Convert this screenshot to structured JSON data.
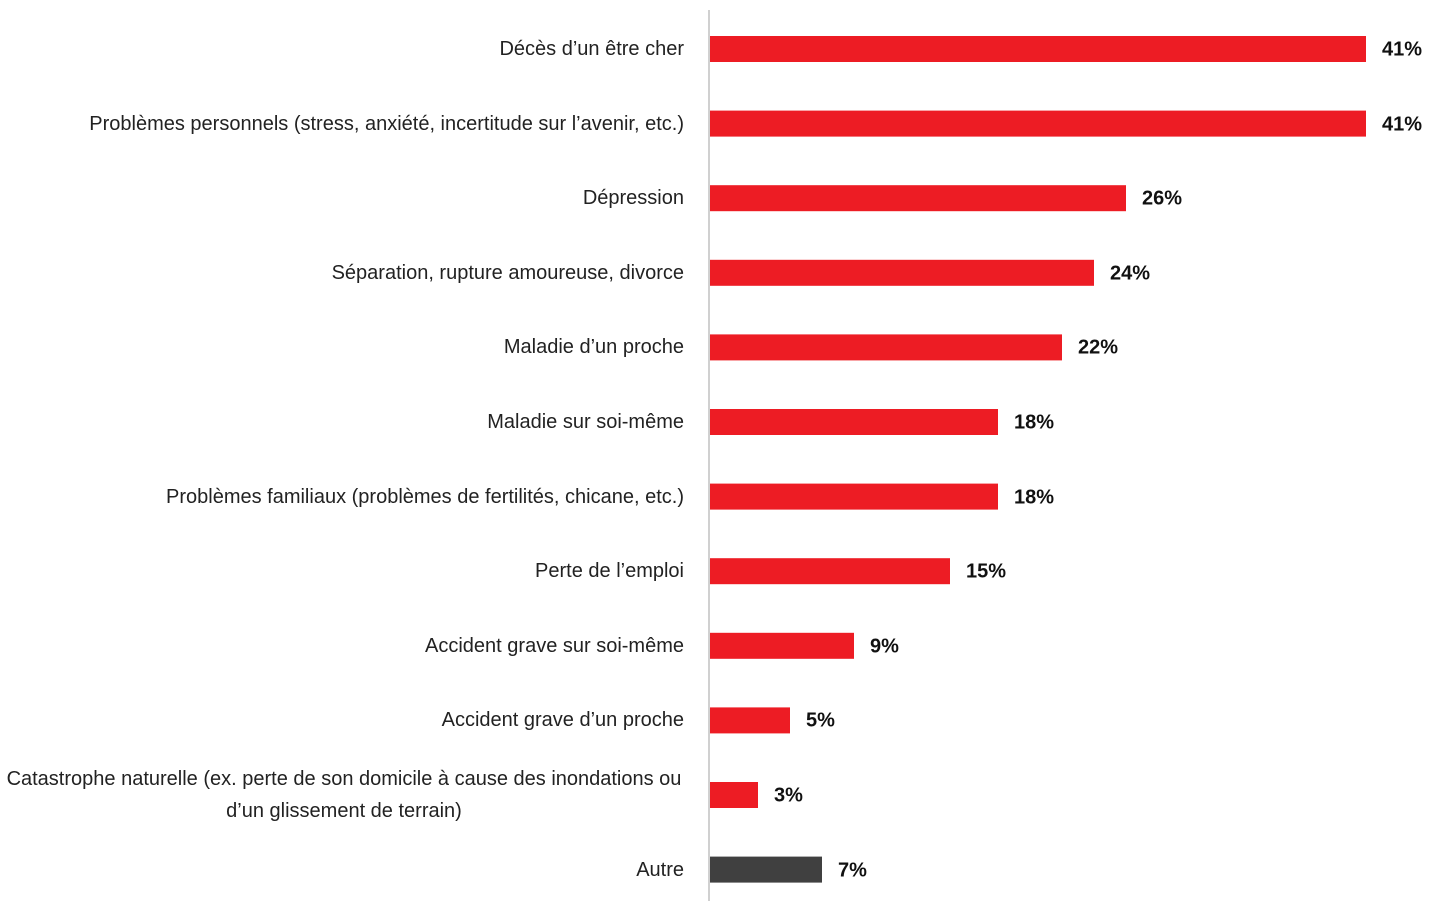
{
  "chart_data": {
    "type": "bar",
    "orientation": "horizontal",
    "categories": [
      "Décès d’un être cher",
      "Problèmes personnels (stress, anxiété, incertitude sur l’avenir, etc.)",
      "Dépression",
      "Séparation, rupture amoureuse, divorce",
      "Maladie d’un proche",
      "Maladie sur soi-même",
      "Problèmes familiaux (problèmes de fertilités, chicane, etc.)",
      "Perte de l’emploi",
      "Accident grave sur soi-même",
      "Accident grave d’un proche",
      "Catastrophe naturelle (ex. perte de son domicile à cause des inondations ou d’un glissement de terrain)",
      "Autre"
    ],
    "values": [
      41,
      41,
      26,
      24,
      22,
      18,
      18,
      15,
      9,
      5,
      3,
      7
    ],
    "value_labels": [
      "41%",
      "41%",
      "26%",
      "24%",
      "22%",
      "18%",
      "18%",
      "15%",
      "9%",
      "5%",
      "3%",
      "7%"
    ],
    "colors": [
      "#ed1c24",
      "#ed1c24",
      "#ed1c24",
      "#ed1c24",
      "#ed1c24",
      "#ed1c24",
      "#ed1c24",
      "#ed1c24",
      "#ed1c24",
      "#ed1c24",
      "#ed1c24",
      "#404040"
    ]
  }
}
